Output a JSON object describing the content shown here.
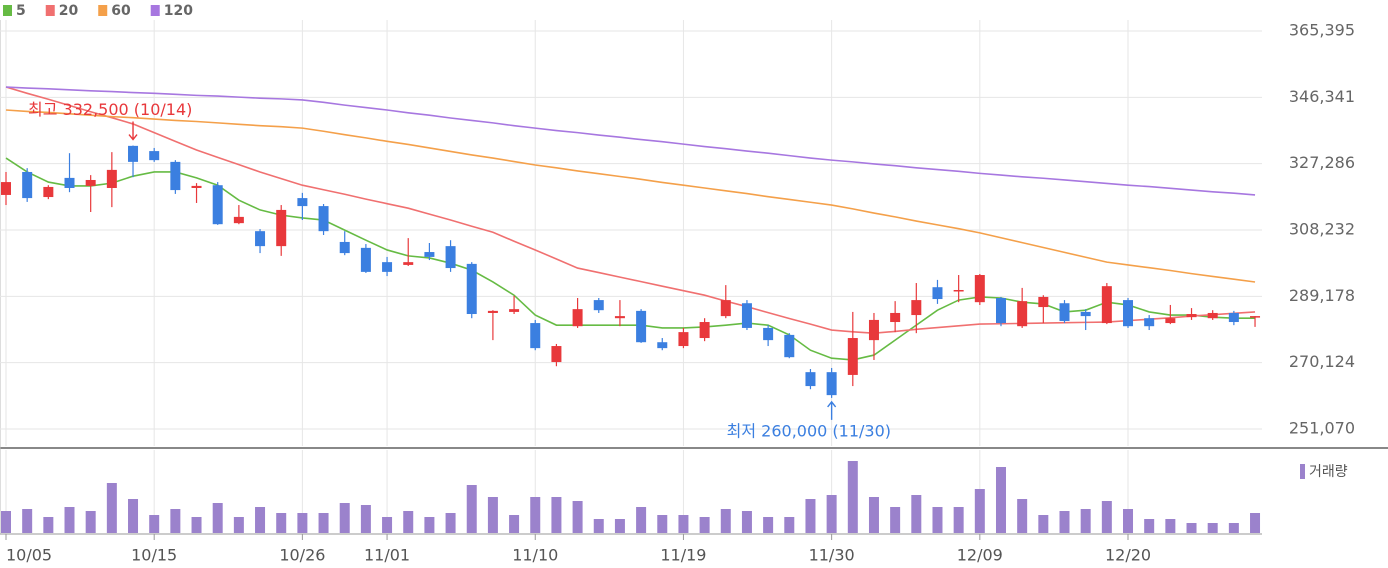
{
  "chart_data": {
    "type": "candlestick",
    "categories": [
      "10/05",
      null,
      null,
      null,
      null,
      null,
      null,
      "10/15",
      null,
      null,
      null,
      null,
      null,
      null,
      "10/26",
      null,
      null,
      null,
      "11/01",
      null,
      null,
      null,
      null,
      null,
      null,
      "11/10",
      null,
      null,
      null,
      null,
      null,
      null,
      "11/19",
      null,
      null,
      null,
      null,
      null,
      null,
      "11/30",
      null,
      null,
      null,
      null,
      null,
      null,
      "12/09",
      null,
      null,
      null,
      null,
      null,
      null,
      "12/20",
      null,
      null,
      null,
      null,
      null,
      null
    ],
    "open": [
      318300,
      324900,
      317700,
      323200,
      320900,
      320300,
      332400,
      330900,
      327800,
      320300,
      321100,
      310200,
      307900,
      303600,
      317400,
      315100,
      304800,
      303100,
      299000,
      298200,
      301900,
      303600,
      298500,
      284400,
      284700,
      281500,
      270300,
      280600,
      288100,
      282900,
      285000,
      276000,
      274900,
      277200,
      283500,
      287200,
      280100,
      278100,
      267400,
      267400,
      266600,
      276600,
      281800,
      283800,
      291800,
      290700,
      287500,
      288700,
      280600,
      286100,
      287200,
      284700,
      281500,
      288100,
      282900,
      281500,
      283200,
      282900,
      284400,
      283200
    ],
    "high": [
      324900,
      326000,
      321100,
      330300,
      324000,
      330600,
      332500,
      331800,
      328300,
      321700,
      322000,
      315400,
      308500,
      315400,
      318900,
      315700,
      307900,
      304200,
      300500,
      305900,
      304500,
      305300,
      299000,
      285200,
      289300,
      282400,
      275500,
      288700,
      288700,
      288100,
      285500,
      277200,
      280100,
      282900,
      292400,
      288100,
      280900,
      278600,
      268300,
      268600,
      284700,
      284400,
      287800,
      293000,
      293900,
      295300,
      295600,
      289000,
      291600,
      289500,
      288100,
      285500,
      293000,
      288700,
      283800,
      286700,
      285800,
      285200,
      285000,
      283500
    ],
    "low": [
      315400,
      316300,
      317100,
      319100,
      313400,
      314800,
      323400,
      327800,
      318600,
      316000,
      309700,
      309900,
      301600,
      300800,
      311100,
      306800,
      301000,
      295900,
      295000,
      297900,
      299600,
      296200,
      282900,
      276600,
      284100,
      273700,
      269100,
      280100,
      284400,
      280600,
      275800,
      273700,
      274300,
      276300,
      282900,
      279500,
      274900,
      271400,
      262500,
      260000,
      263400,
      270900,
      278900,
      278600,
      287000,
      287500,
      286700,
      280600,
      280100,
      281500,
      281500,
      279500,
      281200,
      280100,
      279500,
      281200,
      282400,
      282400,
      280900,
      280400
    ],
    "close": [
      322000,
      317400,
      320600,
      320300,
      322600,
      325500,
      327800,
      328300,
      319700,
      320900,
      309900,
      312000,
      303600,
      314000,
      315100,
      307900,
      301600,
      296200,
      296200,
      299000,
      300500,
      297300,
      284100,
      285000,
      285500,
      274300,
      274900,
      285500,
      285200,
      283500,
      276000,
      274300,
      278900,
      281800,
      288100,
      280100,
      276600,
      271700,
      263400,
      260800,
      277200,
      282400,
      284400,
      288100,
      288400,
      291000,
      295300,
      281500,
      287800,
      289000,
      282100,
      283500,
      292100,
      280600,
      280600,
      282900,
      284100,
      284400,
      281800,
      283500
    ],
    "up_color": "#e8383b",
    "down_color": "#3b7fe0",
    "series": [
      {
        "name": "5",
        "color": "#66bb44",
        "values": [
          328900,
          324900,
          322000,
          320900,
          320900,
          321700,
          323700,
          324900,
          324900,
          323200,
          321100,
          316800,
          314000,
          312500,
          311700,
          311100,
          308200,
          305300,
          302500,
          300800,
          300200,
          298700,
          296700,
          293300,
          289500,
          283800,
          280900,
          280900,
          280900,
          280900,
          280900,
          280100,
          280100,
          280400,
          280900,
          281500,
          280900,
          278100,
          273700,
          271400,
          270900,
          272300,
          276600,
          280900,
          285200,
          288100,
          289000,
          288700,
          287500,
          287000,
          284700,
          285200,
          287500,
          286700,
          284700,
          283800,
          283800,
          283200,
          282900,
          282900
        ]
      },
      {
        "name": "20",
        "color": "#f07070",
        "values": [
          349300,
          347500,
          345800,
          344000,
          342200,
          340500,
          338700,
          336200,
          333700,
          331200,
          329100,
          327000,
          324900,
          323000,
          321100,
          319800,
          318500,
          317100,
          315800,
          314500,
          312800,
          311100,
          309300,
          307600,
          305000,
          302500,
          299900,
          297300,
          296000,
          294700,
          293400,
          292100,
          290800,
          289500,
          287800,
          286200,
          284500,
          282800,
          281200,
          279500,
          279000,
          278600,
          279100,
          279700,
          280200,
          280700,
          281200,
          281300,
          281400,
          281500,
          281600,
          281700,
          281800,
          282200,
          282600,
          283000,
          283500,
          283900,
          284300,
          284700
        ]
      },
      {
        "name": "60",
        "color": "#f4a04a",
        "values": [
          342700,
          342300,
          342000,
          341600,
          341200,
          340800,
          340500,
          340100,
          339700,
          339400,
          339000,
          338600,
          338200,
          337900,
          337500,
          336600,
          335600,
          334700,
          333700,
          332800,
          331800,
          330800,
          329800,
          328900,
          327900,
          326900,
          326100,
          325200,
          324400,
          323600,
          322800,
          321900,
          321100,
          320300,
          319500,
          318700,
          317800,
          317000,
          316200,
          315400,
          314300,
          313100,
          312000,
          310800,
          309700,
          308600,
          307400,
          306000,
          304600,
          303200,
          301800,
          300400,
          299000,
          298200,
          297400,
          296600,
          295700,
          294900,
          294100,
          293300
        ]
      },
      {
        "name": "120",
        "color": "#a777e0",
        "values": [
          349300,
          349000,
          348800,
          348500,
          348200,
          348000,
          347700,
          347500,
          347200,
          346900,
          346700,
          346400,
          346100,
          345900,
          345600,
          344900,
          344100,
          343400,
          342700,
          341900,
          341200,
          340400,
          339700,
          339000,
          338200,
          337500,
          336800,
          336200,
          335500,
          334900,
          334200,
          333600,
          332900,
          332200,
          331600,
          330900,
          330300,
          329600,
          328900,
          328300,
          327800,
          327200,
          326700,
          326100,
          325600,
          325100,
          324500,
          324000,
          323500,
          323100,
          322600,
          322100,
          321600,
          321100,
          320700,
          320200,
          319700,
          319200,
          318800,
          318300
        ]
      }
    ],
    "volume": {
      "name": "거래량",
      "color": "#9b82cc",
      "values": [
        22,
        24,
        16,
        26,
        22,
        50,
        34,
        18,
        24,
        16,
        30,
        16,
        26,
        20,
        20,
        20,
        30,
        28,
        16,
        22,
        16,
        20,
        48,
        36,
        18,
        36,
        36,
        32,
        14,
        14,
        26,
        18,
        18,
        16,
        24,
        22,
        16,
        16,
        34,
        38,
        72,
        36,
        26,
        38,
        26,
        26,
        44,
        66,
        34,
        18,
        22,
        24,
        32,
        24,
        14,
        14,
        10,
        10,
        10,
        20
      ],
      "ylim": [
        0,
        83
      ]
    },
    "ylim": [
      251070,
      365395
    ],
    "yticks": [
      {
        "value": 365395,
        "label": "365,395"
      },
      {
        "value": 346341,
        "label": "346,341"
      },
      {
        "value": 327286,
        "label": "327,286"
      },
      {
        "value": 308232,
        "label": "308,232"
      },
      {
        "value": 289178,
        "label": "289,178"
      },
      {
        "value": 270124,
        "label": "270,124"
      },
      {
        "value": 251070,
        "label": "251,070"
      }
    ],
    "grid": true,
    "annotations": [
      {
        "text": "최고 332,500 (10/14)",
        "index": 6,
        "value": 332500,
        "color": "#e8383b",
        "side": "above"
      },
      {
        "text": "최저 260,000 (11/30)",
        "index": 39,
        "value": 260000,
        "color": "#3b7fe0",
        "side": "below"
      }
    ]
  }
}
